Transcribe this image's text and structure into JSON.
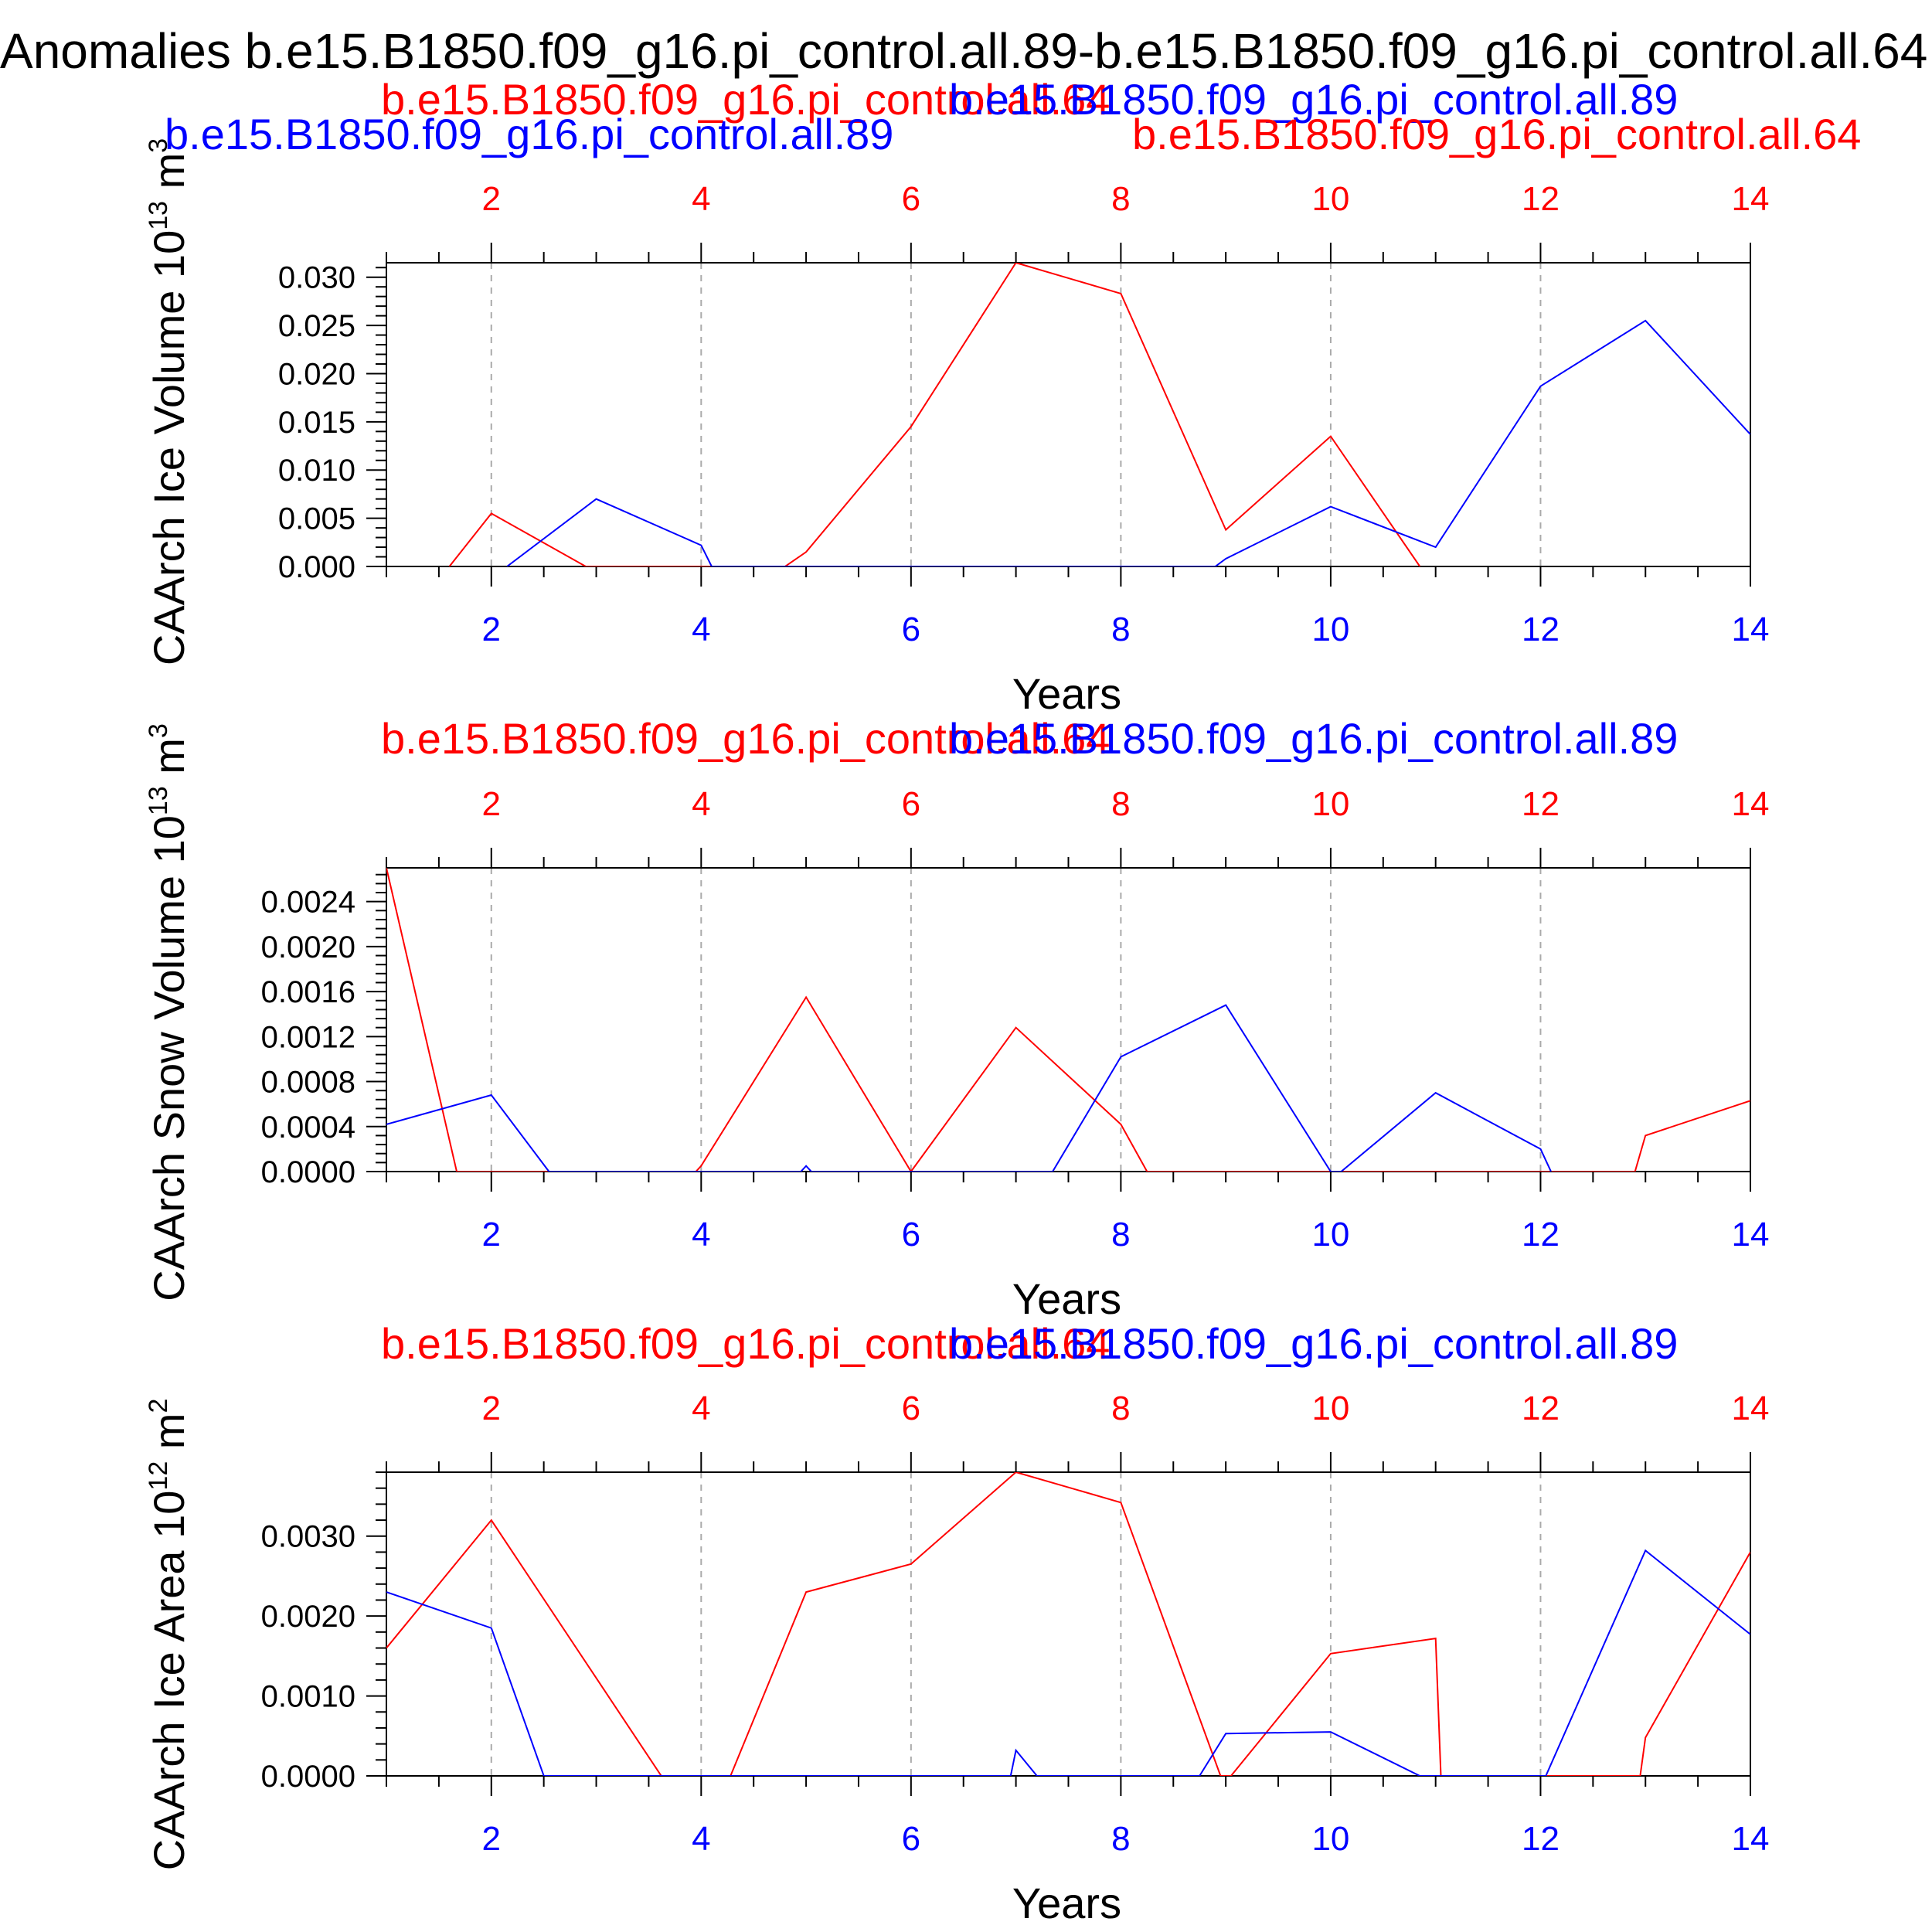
{
  "title": "Anomalies b.e15.B1850.f09_g16.pi_control.all.89-b.e15.B1850.f09_g16.pi_control.all.64",
  "colors": {
    "series_a": "#ff0000",
    "series_b": "#0000ff",
    "axis": "#000000",
    "grid": "#aaaaaa"
  },
  "chart_data": [
    {
      "type": "line",
      "ylabel": "CAArch Ice Volume 10^13 m^3",
      "ylabel_main": "CAArch Ice Volume 10",
      "ylabel_exp": "13",
      "ylabel_unit": "m",
      "ylabel_unit_exp": "3",
      "xlabel": "Years",
      "xlim": [
        1,
        14
      ],
      "ylim": [
        0,
        0.0315
      ],
      "yticks": [
        0,
        0.005,
        0.01,
        0.015,
        0.02,
        0.025,
        0.03
      ],
      "ytick_labels": [
        "0.000",
        "0.005",
        "0.010",
        "0.015",
        "0.020",
        "0.025",
        "0.030"
      ],
      "xticks": [
        2,
        4,
        6,
        8,
        10,
        12,
        14
      ],
      "xtick_labels": [
        "2",
        "4",
        "6",
        "8",
        "10",
        "12",
        "14"
      ],
      "top_labels": [
        {
          "text": "b.e15.B1850.f09_g16.pi_control.all.64",
          "color": "red"
        },
        {
          "text": "b.e15.B1850.f09_g16.pi_control.all.89",
          "color": "blue"
        },
        {
          "text": "b.e15.B1850.f09_g16.pi_control.all.89",
          "color": "blue"
        },
        {
          "text": "b.e15.B1850.f09_g16.pi_control.all.64",
          "color": "red"
        }
      ],
      "series": [
        {
          "name": "b.e15.B1850.f09_g16.pi_control.all.64",
          "color": "red",
          "x": [
            1.6,
            2,
            2.9,
            4.8,
            5,
            6,
            7,
            8,
            9,
            10,
            10.85
          ],
          "values": [
            0,
            0.0055,
            0,
            0,
            0.0015,
            0.0145,
            0.0315,
            0.0283,
            0.0038,
            0.0135,
            0
          ]
        },
        {
          "name": "b.e15.B1850.f09_g16.pi_control.all.89",
          "color": "blue",
          "x": [
            2.15,
            3,
            4,
            4.1,
            8.9,
            9,
            10,
            11,
            12,
            13,
            14
          ],
          "values": [
            0,
            0.007,
            0.0022,
            0,
            0,
            0.0008,
            0.0062,
            0.002,
            0.0187,
            0.0255,
            0.0137
          ]
        }
      ]
    },
    {
      "type": "line",
      "ylabel": "CAArch Snow Volume 10^13 m^3",
      "ylabel_main": "CAArch Snow Volume 10",
      "ylabel_exp": "13",
      "ylabel_unit": "m",
      "ylabel_unit_exp": "3",
      "xlabel": "Years",
      "xlim": [
        1,
        14
      ],
      "ylim": [
        0,
        0.0027
      ],
      "yticks": [
        0,
        0.0004,
        0.0008,
        0.0012,
        0.0016,
        0.002,
        0.0024
      ],
      "ytick_labels": [
        "0.0000",
        "0.0004",
        "0.0008",
        "0.0012",
        "0.0016",
        "0.0020",
        "0.0024"
      ],
      "xticks": [
        2,
        4,
        6,
        8,
        10,
        12,
        14
      ],
      "xtick_labels": [
        "2",
        "4",
        "6",
        "8",
        "10",
        "12",
        "14"
      ],
      "top_labels": [
        {
          "text": "b.e15.B1850.f09_g16.pi_control.all.64",
          "color": "red"
        },
        {
          "text": "b.e15.B1850.f09_g16.pi_control.all.89",
          "color": "blue"
        }
      ],
      "series": [
        {
          "name": "b.e15.B1850.f09_g16.pi_control.all.64",
          "color": "red",
          "x": [
            1,
            1.67,
            3.95,
            4,
            5,
            6,
            7,
            8,
            8.25,
            12.9,
            13,
            14
          ],
          "values": [
            0.0027,
            0,
            0,
            5e-05,
            0.00155,
            0,
            0.00128,
            0.00042,
            0,
            0,
            0.00032,
            0.00063
          ]
        },
        {
          "name": "b.e15.B1850.f09_g16.pi_control.all.89",
          "color": "blue",
          "x": [
            1,
            2,
            2.55,
            4.95,
            5,
            5.05,
            7.35,
            8,
            9,
            10,
            10.1,
            11,
            12,
            12.1
          ],
          "values": [
            0.00042,
            0.00068,
            0,
            0,
            5e-05,
            0,
            0,
            0.00102,
            0.00148,
            0,
            0,
            0.0007,
            0.0002,
            0
          ]
        }
      ]
    },
    {
      "type": "line",
      "ylabel": "CAArch Ice Area 10^12 m^2",
      "ylabel_main": "CAArch Ice Area 10",
      "ylabel_exp": "12",
      "ylabel_unit": "m",
      "ylabel_unit_exp": "2",
      "xlabel": "Years",
      "xlim": [
        1,
        14
      ],
      "ylim": [
        0,
        0.0038
      ],
      "yticks": [
        0,
        0.001,
        0.002,
        0.003
      ],
      "ytick_labels": [
        "0.0000",
        "0.0010",
        "0.0020",
        "0.0030"
      ],
      "xticks": [
        2,
        4,
        6,
        8,
        10,
        12,
        14
      ],
      "xtick_labels": [
        "2",
        "4",
        "6",
        "8",
        "10",
        "12",
        "14"
      ],
      "top_labels": [
        {
          "text": "b.e15.B1850.f09_g16.pi_control.all.64",
          "color": "red"
        },
        {
          "text": "b.e15.B1850.f09_g16.pi_control.all.89",
          "color": "blue"
        }
      ],
      "series": [
        {
          "name": "b.e15.B1850.f09_g16.pi_control.all.64",
          "color": "red",
          "x": [
            1,
            2,
            3.62,
            4.28,
            5,
            6,
            7,
            8,
            8.95,
            9.05,
            10,
            11,
            11.05,
            12.95,
            13,
            14
          ],
          "values": [
            0.0016,
            0.0032,
            0,
            0,
            0.0023,
            0.00265,
            0.0038,
            0.00342,
            0,
            0,
            0.00153,
            0.00172,
            0,
            0,
            0.00048,
            0.0028
          ]
        },
        {
          "name": "b.e15.B1850.f09_g16.pi_control.all.89",
          "color": "blue",
          "x": [
            1,
            2,
            2.5,
            6.95,
            7,
            7.2,
            8.75,
            9,
            10,
            10.85,
            12.05,
            13,
            14
          ],
          "values": [
            0.0023,
            0.00185,
            0,
            0,
            0.00032,
            0,
            0,
            0.00053,
            0.00055,
            0,
            0,
            0.00282,
            0.00177
          ]
        }
      ]
    }
  ]
}
